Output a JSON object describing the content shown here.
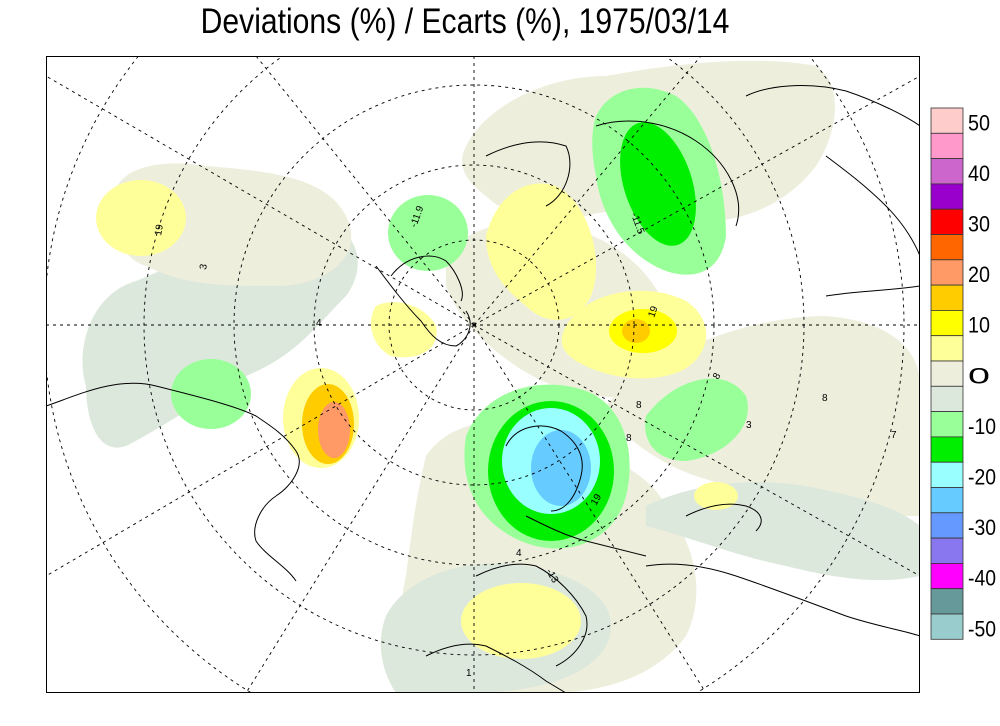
{
  "title": "Deviations (%) / Ecarts (%), 1975/03/14",
  "legend": {
    "levels": [
      {
        "color": "#ffcccc",
        "label": "50"
      },
      {
        "color": "#ff99cc",
        "label": ""
      },
      {
        "color": "#cc66cc",
        "label": "40"
      },
      {
        "color": "#9900cc",
        "label": ""
      },
      {
        "color": "#ff0000",
        "label": "30"
      },
      {
        "color": "#ff6600",
        "label": ""
      },
      {
        "color": "#ff9966",
        "label": "20"
      },
      {
        "color": "#ffcc00",
        "label": ""
      },
      {
        "color": "#ffff00",
        "label": "10"
      },
      {
        "color": "#ffff99",
        "label": ""
      },
      {
        "color": "#eeeedd",
        "label": "0"
      },
      {
        "color": "#dde8dd",
        "label": ""
      },
      {
        "color": "#99ff99",
        "label": "-10"
      },
      {
        "color": "#00ee00",
        "label": ""
      },
      {
        "color": "#99ffff",
        "label": "-20"
      },
      {
        "color": "#66ccff",
        "label": ""
      },
      {
        "color": "#6699ff",
        "label": "-30"
      },
      {
        "color": "#8877ee",
        "label": ""
      },
      {
        "color": "#ff00ff",
        "label": "-40"
      },
      {
        "color": "#669999",
        "label": ""
      },
      {
        "color": "#99cccc",
        "label": "-50"
      }
    ]
  },
  "colors": {
    "background": "#ffffff",
    "neutral_pos": "#eeeedd",
    "neutral_neg": "#dde8dd",
    "pos_10": "#ffff99",
    "pos_15": "#ffff00",
    "pos_20": "#ffcc00",
    "pos_25": "#ff9966",
    "neg_10": "#99ff99",
    "neg_15": "#00ee00",
    "neg_20": "#99ffff",
    "neg_25": "#66ccff"
  },
  "map_labels": [
    "19",
    "8",
    "19",
    "3",
    "8",
    "8",
    "4",
    "-11.5",
    "-11.9",
    "3",
    "7",
    "4",
    "-13",
    "8",
    "19",
    "1"
  ]
}
